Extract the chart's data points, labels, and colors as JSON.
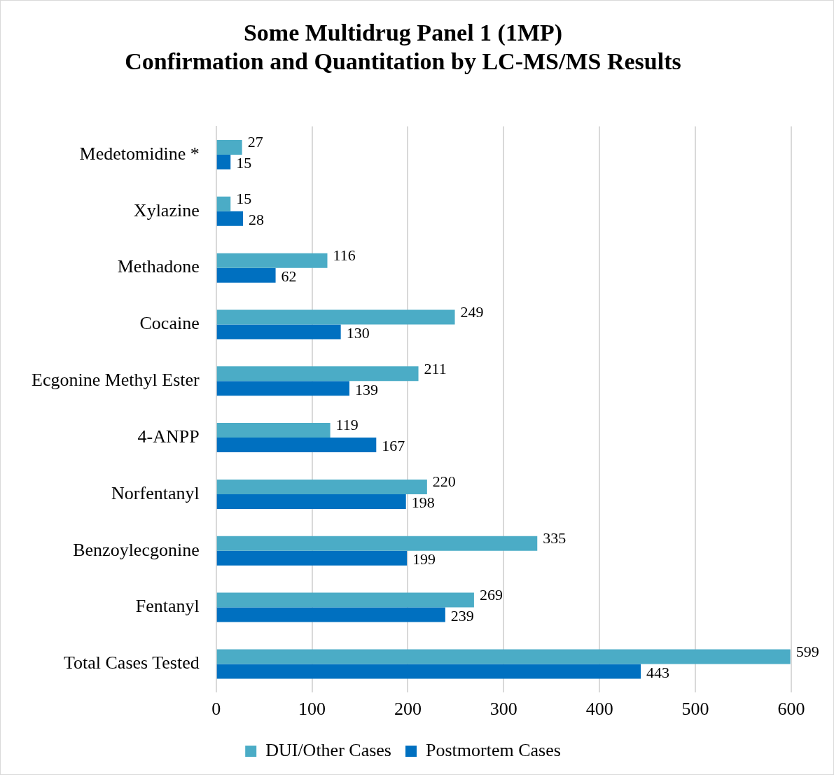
{
  "chart_data": {
    "type": "bar",
    "orientation": "horizontal",
    "title": "Some Multidrug Panel 1 (1MP)\nConfirmation and Quantitation by LC-MS/MS Results",
    "categories": [
      "Medetomidine *",
      "Xylazine",
      "Methadone",
      "Cocaine",
      "Ecgonine Methyl Ester",
      "4-ANPP",
      "Norfentanyl",
      "Benzoylecgonine",
      "Fentanyl",
      "Total Cases Tested"
    ],
    "series": [
      {
        "name": "DUI/Other Cases",
        "color": "#4bacc6",
        "values": [
          27,
          15,
          116,
          249,
          211,
          119,
          220,
          335,
          269,
          599
        ]
      },
      {
        "name": "Postmortem Cases",
        "color": "#0070c0",
        "values": [
          15,
          28,
          62,
          130,
          139,
          167,
          198,
          199,
          239,
          443
        ]
      }
    ],
    "xlim": [
      0,
      600
    ],
    "xticks": [
      0,
      100,
      200,
      300,
      400,
      500,
      600
    ],
    "grid": "x",
    "legend": "bottom",
    "data_labels": true
  }
}
